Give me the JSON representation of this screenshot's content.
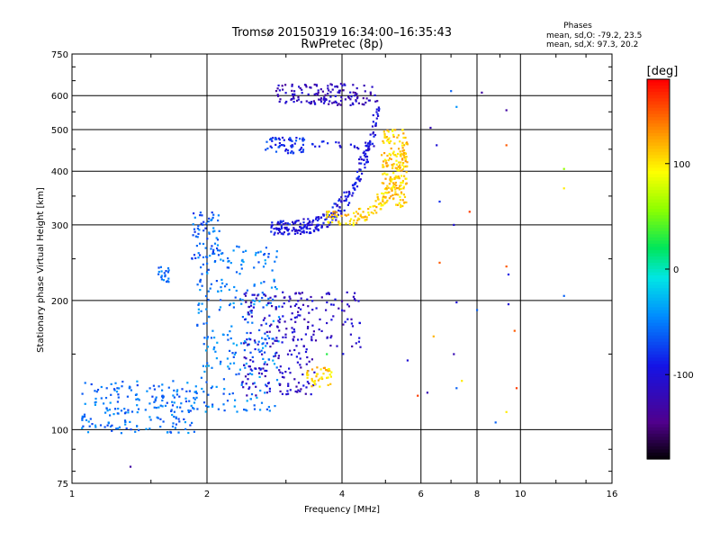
{
  "chart_data": {
    "type": "scatter",
    "title": "Tromsø 20150319 16:34:00–16:35:43",
    "subtitle": "RwPretec (8p)",
    "xlabel": "Frequency [MHz]",
    "ylabel": "Stationary phase Virtual Height [km]",
    "x_scale": "log",
    "y_scale": "log",
    "xlim": [
      1,
      16
    ],
    "ylim": [
      75,
      750
    ],
    "x_ticks": [
      1,
      2,
      4,
      6,
      8,
      10,
      16
    ],
    "y_ticks": [
      75,
      100,
      200,
      300,
      400,
      500,
      600,
      750
    ],
    "grid": true,
    "stats": {
      "heading": "Phases",
      "line_o": "mean, sd,O: -79.2, 23.5",
      "line_x": "mean, sd,X:  97.3, 20.2"
    },
    "colorbar": {
      "label": "[deg]",
      "range": [
        -180,
        180
      ],
      "ticks": [
        100,
        0,
        -100
      ],
      "tick_labels": [
        "100",
        "0",
        "-100"
      ]
    },
    "clusters": [
      {
        "x": [
          1.05,
          1.9
        ],
        "y": [
          98,
          130
        ],
        "phase": -55,
        "n": 200
      },
      {
        "x": [
          1.55,
          1.65
        ],
        "y": [
          220,
          240
        ],
        "phase": -60,
        "n": 20
      },
      {
        "x": [
          1.85,
          2.15
        ],
        "y": [
          250,
          330
        ],
        "phase": -60,
        "n": 60
      },
      {
        "x": [
          1.9,
          2.9
        ],
        "y": [
          110,
          270
        ],
        "phase": -50,
        "n": 280
      },
      {
        "x": [
          2.4,
          3.5
        ],
        "y": [
          120,
          210
        ],
        "phase": -110,
        "n": 220
      },
      {
        "x": [
          3.5,
          4.4
        ],
        "y": [
          150,
          210
        ],
        "phase": -110,
        "n": 50
      },
      {
        "x": [
          3.3,
          3.8
        ],
        "y": [
          125,
          140
        ],
        "phase": 110,
        "n": 40
      },
      {
        "x": [
          2.7,
          3.3
        ],
        "y": [
          440,
          480
        ],
        "phase": -80,
        "n": 60
      },
      {
        "x": [
          2.85,
          4.8
        ],
        "y": [
          570,
          640
        ],
        "phase": -115,
        "n": 140
      },
      {
        "x": [
          3.4,
          4.8
        ],
        "y": [
          450,
          470
        ],
        "phase": -95,
        "n": 20
      },
      {
        "x": [
          4.9,
          5.6
        ],
        "y": [
          330,
          500
        ],
        "phase": 110,
        "n": 180
      }
    ],
    "arcs": [
      {
        "x_start": 2.8,
        "x_asymptote": 4.8,
        "y_base": 295,
        "y_top": 560,
        "phase": -95,
        "n": 260
      },
      {
        "x_start": 3.7,
        "x_asymptote": 5.6,
        "y_base": 310,
        "y_top": 480,
        "phase": 110,
        "n": 120
      }
    ],
    "sparse_points": [
      [
        6.3,
        505,
        -120
      ],
      [
        6.5,
        460,
        -100
      ],
      [
        7.0,
        615,
        -60
      ],
      [
        7.2,
        565,
        -40
      ],
      [
        8.2,
        610,
        -130
      ],
      [
        9.3,
        555,
        -130
      ],
      [
        9.3,
        460,
        150
      ],
      [
        12.5,
        405,
        60
      ],
      [
        12.5,
        365,
        100
      ],
      [
        6.6,
        340,
        -80
      ],
      [
        7.1,
        300,
        -100
      ],
      [
        7.7,
        322,
        160
      ],
      [
        6.6,
        245,
        150
      ],
      [
        9.3,
        240,
        150
      ],
      [
        9.4,
        230,
        -90
      ],
      [
        12.5,
        205,
        -60
      ],
      [
        7.2,
        198,
        -100
      ],
      [
        9.4,
        196,
        -100
      ],
      [
        8.0,
        190,
        -60
      ],
      [
        9.7,
        170,
        150
      ],
      [
        6.4,
        165,
        120
      ],
      [
        7.1,
        150,
        -120
      ],
      [
        5.6,
        145,
        -100
      ],
      [
        5.9,
        120,
        160
      ],
      [
        6.2,
        122,
        -120
      ],
      [
        7.2,
        125,
        -60
      ],
      [
        7.4,
        130,
        100
      ],
      [
        9.8,
        125,
        160
      ],
      [
        9.3,
        110,
        100
      ],
      [
        8.8,
        104,
        -60
      ],
      [
        1.35,
        82,
        -130
      ],
      [
        3.7,
        150,
        30
      ]
    ]
  }
}
